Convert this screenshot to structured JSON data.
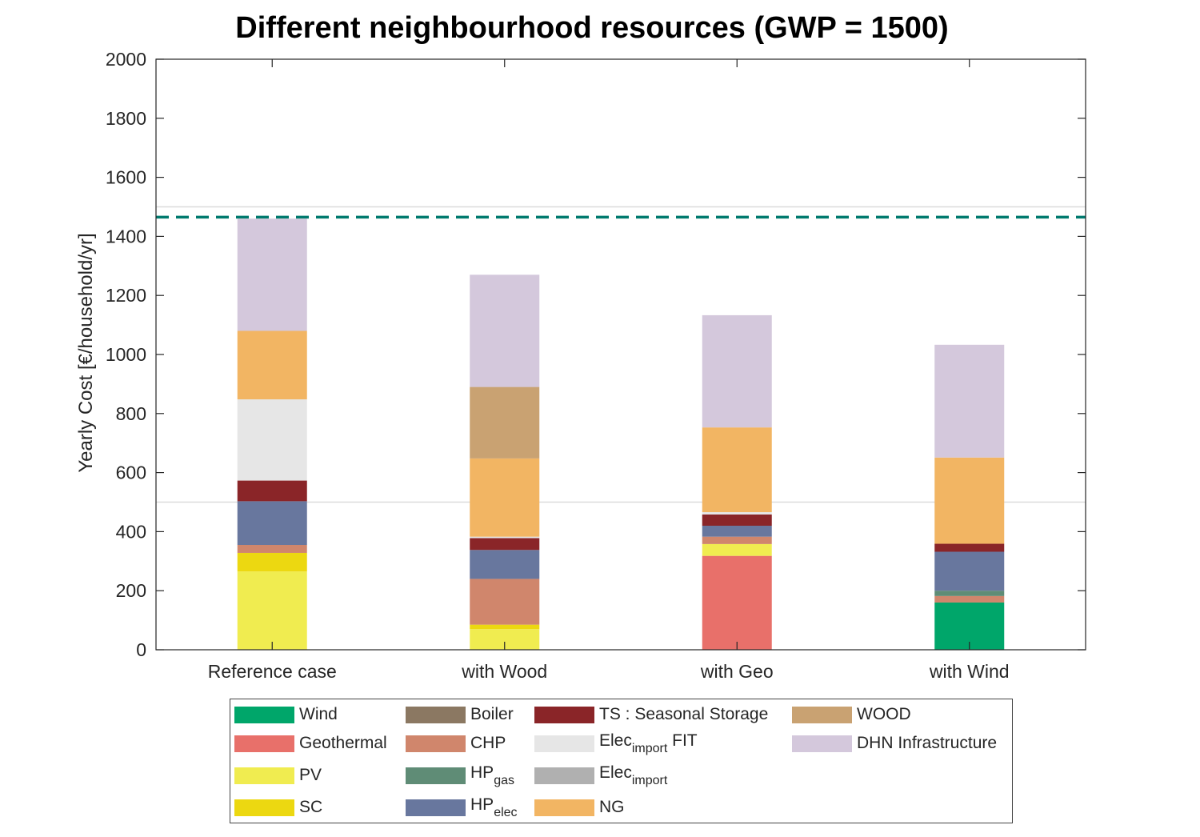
{
  "chart_data": {
    "type": "bar",
    "stacked": true,
    "title": "Different neighbourhood resources (GWP = 1500)",
    "ylabel": "Yearly Cost [€/household/yr]",
    "xlabel": "",
    "ylim": [
      0,
      2000
    ],
    "yticks": [
      "0",
      "200",
      "400",
      "600",
      "800",
      "1000",
      "1200",
      "1400",
      "1600",
      "1800",
      "2000"
    ],
    "categories": [
      "Reference case",
      "with Wood",
      "with Geo",
      "with Wind"
    ],
    "reference_line": {
      "value": 1465,
      "style": "dashed",
      "color": "#007a6e"
    },
    "grid": "horizontal lines at 500 and 1500",
    "series": [
      {
        "name": "Wind",
        "color": "#00a66a",
        "values": [
          0,
          0,
          0,
          160
        ]
      },
      {
        "name": "Geothermal",
        "color": "#e8706a",
        "values": [
          0,
          0,
          318,
          0
        ]
      },
      {
        "name": "PV",
        "color": "#f0ec50",
        "values": [
          265,
          70,
          40,
          0
        ]
      },
      {
        "name": "SC",
        "color": "#ecd811",
        "values": [
          63,
          15,
          0,
          0
        ]
      },
      {
        "name": "Boiler",
        "color": "#8b7862",
        "values": [
          0,
          0,
          0,
          0
        ]
      },
      {
        "name": "CHP",
        "color": "#d0866c",
        "values": [
          27,
          155,
          25,
          22
        ]
      },
      {
        "name": "HPgas",
        "color": "#5f8c76",
        "values": [
          0,
          0,
          0,
          18
        ]
      },
      {
        "name": "HPelec",
        "color": "#68779e",
        "values": [
          148,
          98,
          37,
          132
        ]
      },
      {
        "name": "TS : Seasonal Storage",
        "color": "#8a2528",
        "values": [
          70,
          40,
          38,
          27
        ]
      },
      {
        "name": "Elecimport FIT",
        "color": "#e6e6e6",
        "values": [
          275,
          5,
          8,
          0
        ]
      },
      {
        "name": "Elecimport",
        "color": "#b0b0b0",
        "values": [
          0,
          0,
          0,
          0
        ]
      },
      {
        "name": "NG",
        "color": "#f2b563",
        "values": [
          232,
          265,
          287,
          292
        ]
      },
      {
        "name": "WOOD",
        "color": "#c9a272",
        "values": [
          0,
          242,
          0,
          0
        ]
      },
      {
        "name": "DHN Infrastructure",
        "color": "#d4c8dc",
        "values": [
          380,
          380,
          380,
          382
        ]
      }
    ]
  },
  "legend": {
    "items": [
      {
        "text": "Wind",
        "color": "#00a66a"
      },
      {
        "text": "Geothermal",
        "color": "#e8706a"
      },
      {
        "text": "PV",
        "color": "#f0ec50"
      },
      {
        "text": "SC",
        "color": "#ecd811"
      },
      {
        "text": "Boiler",
        "color": "#8b7862"
      },
      {
        "text": "CHP",
        "color": "#d0866c"
      },
      {
        "text": "HP",
        "sub": "gas",
        "color": "#5f8c76"
      },
      {
        "text": "HP",
        "sub": "elec",
        "color": "#68779e"
      },
      {
        "text": "TS : Seasonal Storage",
        "color": "#8a2528"
      },
      {
        "text": "Elec",
        "sub": "import",
        "after": " FIT",
        "color": "#e6e6e6"
      },
      {
        "text": "Elec",
        "sub": "import",
        "color": "#b0b0b0"
      },
      {
        "text": "NG",
        "color": "#f2b563"
      },
      {
        "text": "WOOD",
        "color": "#c9a272"
      },
      {
        "text": "DHN Infrastructure",
        "color": "#d4c8dc"
      }
    ]
  }
}
